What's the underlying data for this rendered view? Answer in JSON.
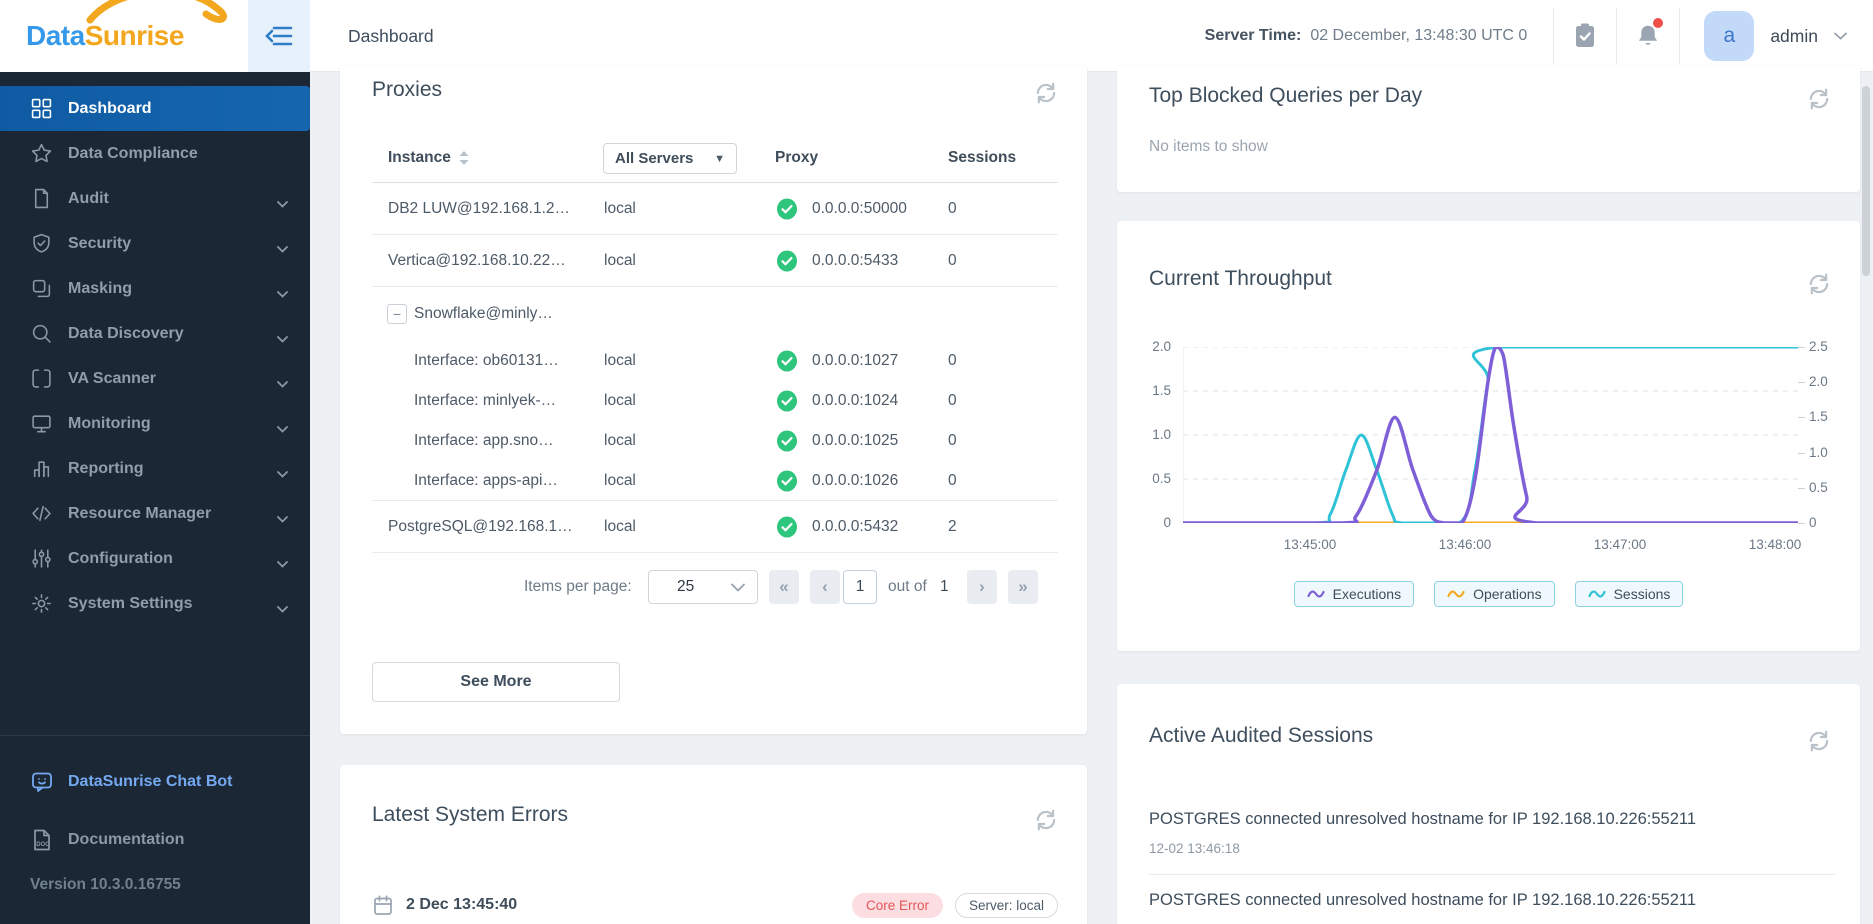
{
  "brand": {
    "part1": "Data",
    "part2": "Sunrise"
  },
  "header": {
    "page_title": "Dashboard",
    "server_time_label": "Server Time:",
    "server_time_value": "02 December, 13:48:30  UTC 0",
    "user_initial": "a",
    "user_name": "admin"
  },
  "sidebar": {
    "items": [
      {
        "label": "Dashboard",
        "icon": "dashboard",
        "active": true,
        "expandable": false
      },
      {
        "label": "Data Compliance",
        "icon": "star",
        "active": false,
        "expandable": false
      },
      {
        "label": "Audit",
        "icon": "document",
        "active": false,
        "expandable": true
      },
      {
        "label": "Security",
        "icon": "shield",
        "active": false,
        "expandable": true
      },
      {
        "label": "Masking",
        "icon": "masking",
        "active": false,
        "expandable": true
      },
      {
        "label": "Data Discovery",
        "icon": "search",
        "active": false,
        "expandable": true
      },
      {
        "label": "VA Scanner",
        "icon": "scanner",
        "active": false,
        "expandable": true
      },
      {
        "label": "Monitoring",
        "icon": "monitor",
        "active": false,
        "expandable": true
      },
      {
        "label": "Reporting",
        "icon": "report",
        "active": false,
        "expandable": true
      },
      {
        "label": "Resource Manager",
        "icon": "code",
        "active": false,
        "expandable": true
      },
      {
        "label": "Configuration",
        "icon": "sliders",
        "active": false,
        "expandable": true
      },
      {
        "label": "System Settings",
        "icon": "gear",
        "active": false,
        "expandable": true
      }
    ],
    "chat_bot_label": "DataSunrise Chat Bot",
    "documentation_label": "Documentation",
    "version": "Version 10.3.0.16755"
  },
  "proxies": {
    "title": "Proxies",
    "columns": {
      "instance": "Instance",
      "server_filter": "All Servers",
      "proxy": "Proxy",
      "sessions": "Sessions"
    },
    "rows": [
      {
        "type": "normal",
        "instance": "DB2 LUW@192.168.1.2…",
        "server": "local",
        "proxy": "0.0.0.0:50000",
        "sessions": "0",
        "divider": true
      },
      {
        "type": "normal",
        "instance": "Vertica@192.168.10.22…",
        "server": "local",
        "proxy": "0.0.0.0:5433",
        "sessions": "0",
        "divider": true
      },
      {
        "type": "group",
        "instance": "Snowflake@minly…",
        "server": "",
        "proxy": "",
        "sessions": "",
        "divider": false
      },
      {
        "type": "child",
        "instance": "Interface: ob60131…",
        "server": "local",
        "proxy": "0.0.0.0:1027",
        "sessions": "0",
        "divider": false
      },
      {
        "type": "child",
        "instance": "Interface: minlyek-…",
        "server": "local",
        "proxy": "0.0.0.0:1024",
        "sessions": "0",
        "divider": false
      },
      {
        "type": "child",
        "instance": "Interface: app.sno…",
        "server": "local",
        "proxy": "0.0.0.0:1025",
        "sessions": "0",
        "divider": false
      },
      {
        "type": "child",
        "instance": "Interface: apps-api…",
        "server": "local",
        "proxy": "0.0.0.0:1026",
        "sessions": "0",
        "divider": true
      },
      {
        "type": "normal",
        "instance": "PostgreSQL@192.168.1…",
        "server": "local",
        "proxy": "0.0.0.0:5432",
        "sessions": "2",
        "divider": true
      }
    ],
    "status_ok_color": "#2ec57d",
    "pagination": {
      "items_per_page_label": "Items per page:",
      "items_per_page_value": "25",
      "first_label": "«",
      "prev_label": "‹",
      "next_label": "›",
      "last_label": "»",
      "page": "1",
      "out_of_label": "out of",
      "total_pages": "1"
    },
    "see_more_label": "See More"
  },
  "errors": {
    "title": "Latest System Errors",
    "items": [
      {
        "datetime": "2 Dec 13:45:40",
        "type_badge": "Core Error",
        "server_badge": "Server: local"
      }
    ],
    "badge_color": "#e25757"
  },
  "top_blocked": {
    "title": "Top Blocked Queries per Day",
    "empty_text": "No items to show"
  },
  "throughput": {
    "title": "Current Throughput",
    "legend": [
      {
        "label": "Executions",
        "color": "#7e5fd8"
      },
      {
        "label": "Operations",
        "color": "#f3ab25"
      },
      {
        "label": "Sessions",
        "color": "#30c3d8"
      }
    ]
  },
  "audited": {
    "title": "Active Audited Sessions",
    "items": [
      {
        "text": "POSTGRES connected unresolved hostname for IP 192.168.10.226:55211",
        "time": "12-02 13:46:18"
      },
      {
        "text": "POSTGRES connected unresolved hostname for IP 192.168.10.226:55211",
        "time": ""
      }
    ]
  },
  "chart_data": {
    "type": "line",
    "title": "Current Throughput",
    "x_ticks": [
      "13:45:00",
      "13:46:00",
      "13:47:00",
      "13:48:00"
    ],
    "x_range_seconds_after_134500": [
      -49,
      189
    ],
    "y_left_ticks": [
      "2.0",
      "1.5",
      "1.0",
      "0.5",
      "0"
    ],
    "y_right_ticks": [
      "2.5",
      "2.0",
      "1.5",
      "1.0",
      "0.5",
      "0"
    ],
    "y_left_range": [
      0,
      2.0
    ],
    "y_right_range": [
      0,
      2.5
    ],
    "grid": "dashed-horizontal",
    "legend_position": "bottom",
    "series": [
      {
        "name": "Operations",
        "color": "#f3ab25",
        "points_t_v": [
          [
            -49,
            0
          ],
          [
            189,
            0
          ]
        ]
      },
      {
        "name": "Sessions",
        "color": "#30c3d8",
        "points_t_v": [
          [
            -49,
            0
          ],
          [
            2,
            0
          ],
          [
            8,
            0.1
          ],
          [
            14,
            0.6
          ],
          [
            20,
            1.0
          ],
          [
            26,
            0.6
          ],
          [
            32,
            0.1
          ],
          [
            36,
            0
          ],
          [
            58,
            0
          ],
          [
            64,
            0.6
          ],
          [
            69,
            1.6
          ],
          [
            73,
            2.0
          ],
          [
            189,
            2.0
          ]
        ]
      },
      {
        "name": "Executions",
        "color": "#7e5fd8",
        "points_t_v": [
          [
            -49,
            0
          ],
          [
            12,
            0
          ],
          [
            18,
            0.08
          ],
          [
            26,
            0.6
          ],
          [
            33,
            1.2
          ],
          [
            40,
            0.6
          ],
          [
            47,
            0.08
          ],
          [
            52,
            0
          ],
          [
            59,
            0
          ],
          [
            64,
            0.5
          ],
          [
            69,
            1.6
          ],
          [
            72,
            2.0
          ],
          [
            75,
            1.9
          ],
          [
            79,
            1.1
          ],
          [
            84,
            0.3
          ],
          [
            88,
            0
          ],
          [
            189,
            0
          ]
        ]
      }
    ]
  }
}
